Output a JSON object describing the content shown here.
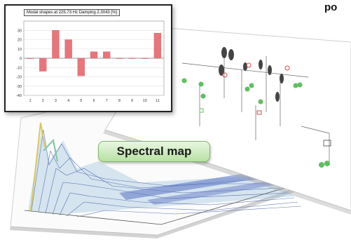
{
  "header": {
    "clipped_text": "po"
  },
  "spectral_button": {
    "label": "Spectral map"
  },
  "chart_data": {
    "type": "bar",
    "title": "Modal shapes at 225.73 Hz Damping 2.3043 [%]",
    "categories": [
      "1",
      "2",
      "3",
      "4",
      "5",
      "6",
      "7",
      "8",
      "9",
      "10",
      "11"
    ],
    "values": [
      0,
      -14,
      30,
      20,
      -19,
      7,
      7,
      0,
      0,
      0,
      27
    ],
    "ylim": [
      -40,
      40
    ],
    "yticks": [
      -40,
      -30,
      -20,
      -10,
      0,
      10,
      20,
      30
    ],
    "grid": true,
    "bar_color": "#e8757a"
  }
}
